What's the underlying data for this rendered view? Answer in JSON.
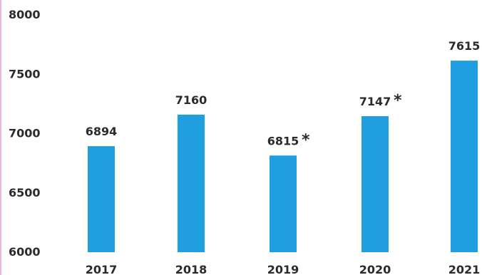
{
  "chart_data": {
    "type": "bar",
    "categories": [
      "2017",
      "2018",
      "2019",
      "2020",
      "2021"
    ],
    "values": [
      6894,
      7160,
      6815,
      7147,
      7615
    ],
    "value_labels": [
      "6894",
      "7160",
      "6815",
      "7147",
      "7615"
    ],
    "markers": [
      "",
      "",
      "*",
      "*",
      ""
    ],
    "y_ticks": [
      "8000",
      "7500",
      "7000",
      "6500",
      "6000"
    ],
    "y_tick_values": [
      8000,
      7500,
      7000,
      6500,
      6000
    ],
    "ylim": [
      6000,
      8000
    ],
    "grid": false,
    "bar_color": "#1f9fe0",
    "title": "",
    "xlabel": "",
    "ylabel": ""
  }
}
